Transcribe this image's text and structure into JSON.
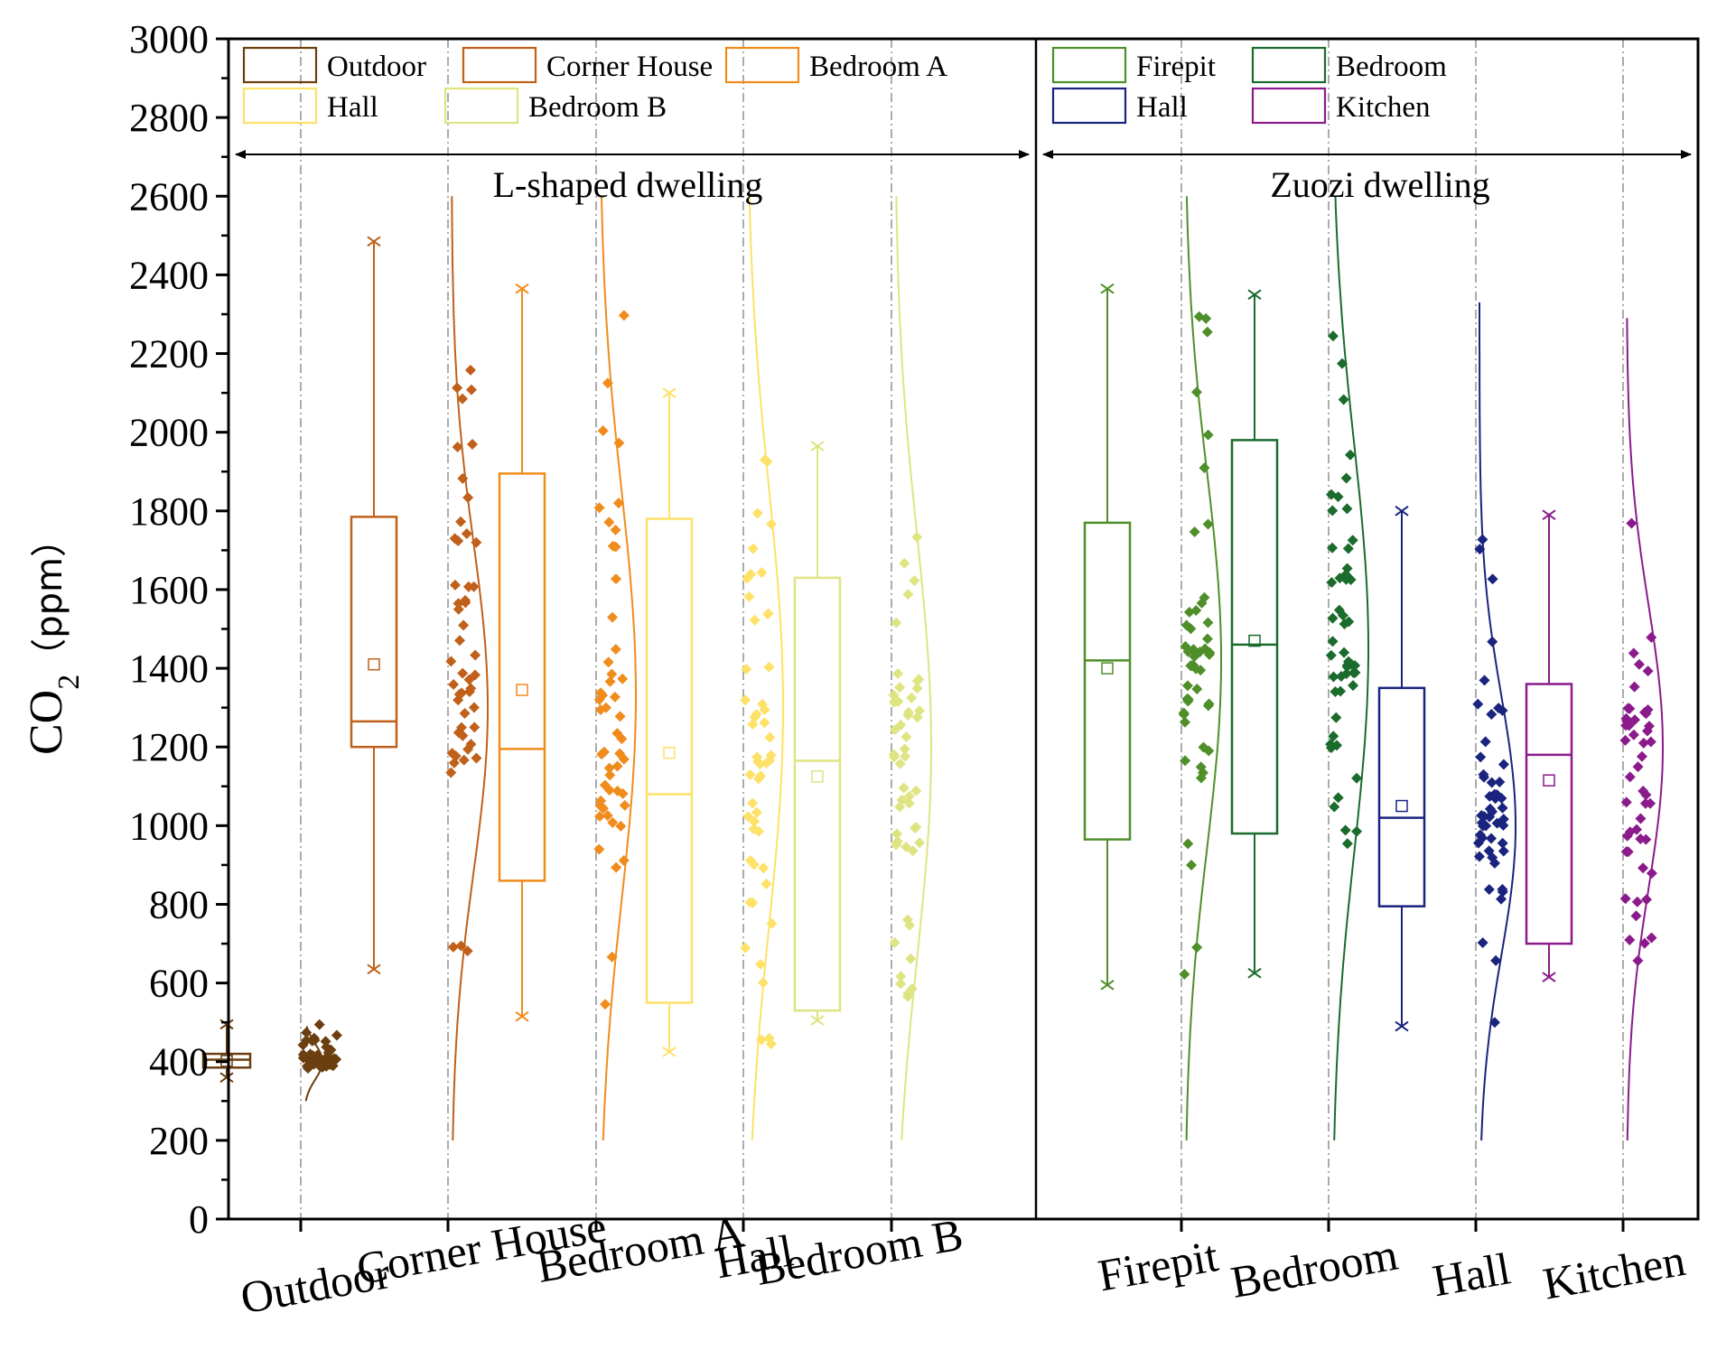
{
  "chart_data": {
    "type": "box-raincloud",
    "ylabel_main": "CO",
    "ylabel_sub": "2",
    "ylabel_unit": "（ppm）",
    "ylim": [
      0,
      3000
    ],
    "yticks": [
      "0",
      "200",
      "400",
      "600",
      "800",
      "1000",
      "1200",
      "1400",
      "1600",
      "1800",
      "2000",
      "2200",
      "2400",
      "2600",
      "2800",
      "3000"
    ],
    "panels": [
      {
        "title": "L-shaped dwelling",
        "series": [
          {
            "name": "Outdoor",
            "color": "#6b3f10",
            "min": 360,
            "q1": 385,
            "median": 405,
            "q3": 420,
            "max": 495,
            "mean": 402,
            "curve_top": 490,
            "curve_bottom": 300,
            "center": 400,
            "spread": 45
          },
          {
            "name": "Corner House",
            "color": "#c0601a",
            "min": 635,
            "q1": 1200,
            "median": 1265,
            "q3": 1785,
            "max": 2485,
            "mean": 1410,
            "curve_top": 2600,
            "curve_bottom": 200,
            "center": 1300,
            "spread": 420
          },
          {
            "name": "Bedroom A",
            "color": "#f08c1c",
            "min": 515,
            "q1": 860,
            "median": 1195,
            "q3": 1895,
            "max": 2365,
            "mean": 1345,
            "curve_top": 2600,
            "curve_bottom": 200,
            "center": 1330,
            "spread": 520
          },
          {
            "name": "Hall",
            "color": "#fde168",
            "min": 425,
            "q1": 550,
            "median": 1080,
            "q3": 1780,
            "max": 2100,
            "mean": 1185,
            "curve_top": 2600,
            "curve_bottom": 200,
            "center": 1300,
            "spread": 560
          },
          {
            "name": "Bedroom B",
            "color": "#dfe482",
            "min": 505,
            "q1": 530,
            "median": 1165,
            "q3": 1630,
            "max": 1965,
            "mean": 1125,
            "curve_top": 2600,
            "curve_bottom": 200,
            "center": 1200,
            "spread": 540
          }
        ]
      },
      {
        "title": "Zuozi dwelling",
        "series": [
          {
            "name": "Firepit",
            "color": "#4f8f2a",
            "min": 595,
            "q1": 965,
            "median": 1420,
            "q3": 1770,
            "max": 2365,
            "mean": 1400,
            "curve_top": 2600,
            "curve_bottom": 200,
            "center": 1420,
            "spread": 480
          },
          {
            "name": "Bedroom",
            "color": "#1a6b2c",
            "min": 625,
            "q1": 980,
            "median": 1460,
            "q3": 1980,
            "max": 2350,
            "mean": 1470,
            "curve_top": 2600,
            "curve_bottom": 200,
            "center": 1450,
            "spread": 520
          },
          {
            "name": "Hall",
            "color": "#1a237e",
            "min": 490,
            "q1": 795,
            "median": 1020,
            "q3": 1350,
            "max": 1800,
            "mean": 1050,
            "curve_top": 2330,
            "curve_bottom": 200,
            "center": 1000,
            "spread": 330
          },
          {
            "name": "Kitchen",
            "color": "#8b1a8b",
            "min": 615,
            "q1": 700,
            "median": 1180,
            "q3": 1360,
            "max": 1790,
            "mean": 1115,
            "curve_top": 2290,
            "curve_bottom": 200,
            "center": 1200,
            "spread": 360
          }
        ]
      }
    ]
  }
}
